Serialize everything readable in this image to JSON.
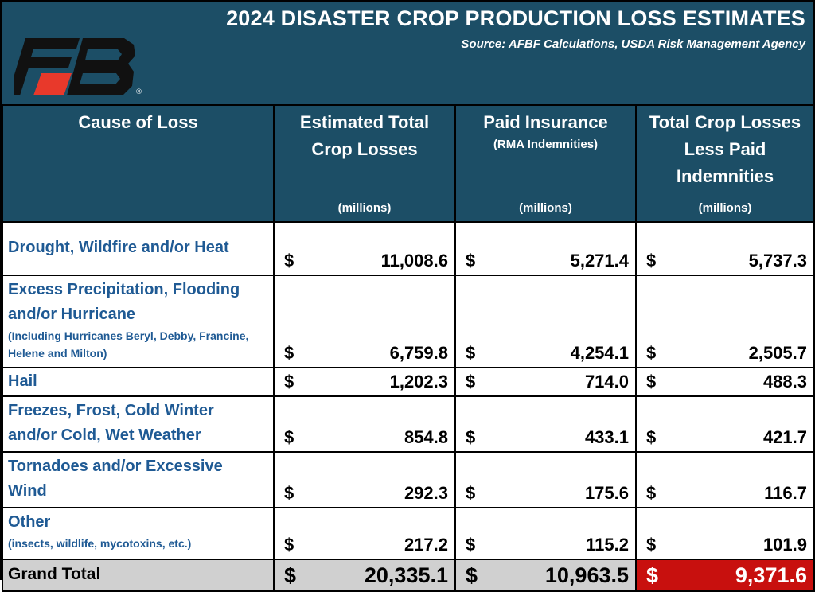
{
  "header": {
    "title": "2024 DISASTER CROP PRODUCTION LOSS ESTIMATES",
    "source": "Source: AFBF Calculations, USDA Risk Management Agency",
    "logo": {
      "icon": "farm-bureau-logo-icon",
      "registered_mark": "®",
      "colors": {
        "dark": "#111111",
        "accent": "#e8392b"
      }
    }
  },
  "columns": {
    "cause": {
      "label": "Cause of Loss"
    },
    "estimated": {
      "label_line1": "Estimated Total",
      "label_line2": "Crop Losses",
      "unit": "(millions)"
    },
    "paid": {
      "label_line1": "Paid Insurance",
      "sublabel": "(RMA Indemnities)",
      "unit": "(millions)"
    },
    "net": {
      "label_line1": "Total Crop Losses",
      "label_line2": "Less Paid",
      "label_line3": "Indemnities",
      "unit": "(millions)"
    }
  },
  "currency_symbol": "$",
  "rows": [
    {
      "cause_line1": "Drought, Wildfire and/or Heat",
      "estimated": "11,008.6",
      "paid": "5,271.4",
      "net": "5,737.3"
    },
    {
      "cause_line1": "Excess Precipitation, Flooding",
      "cause_line2": "and/or Hurricane",
      "note_line1": "(Including Hurricanes Beryl, Debby, Francine,",
      "note_line2": "Helene and Milton)",
      "estimated": "6,759.8",
      "paid": "4,254.1",
      "net": "2,505.7"
    },
    {
      "cause_line1": "Hail",
      "estimated": "1,202.3",
      "paid": "714.0",
      "net": "488.3"
    },
    {
      "cause_line1": "Freezes, Frost, Cold Winter",
      "cause_line2": "and/or Cold, Wet Weather",
      "estimated": "854.8",
      "paid": "433.1",
      "net": "421.7"
    },
    {
      "cause_line1": "Tornadoes and/or Excessive",
      "cause_line2": "Wind",
      "estimated": "292.3",
      "paid": "175.6",
      "net": "116.7"
    },
    {
      "cause_line1": "Other",
      "note_line1": "(insects, wildlife, mycotoxins, etc.)",
      "estimated": "217.2",
      "paid": "115.2",
      "net": "101.9"
    }
  ],
  "total": {
    "label": "Grand Total",
    "estimated": "20,335.1",
    "paid": "10,963.5",
    "net": "9,371.6"
  },
  "colors": {
    "header_bg": "#1c4e66",
    "cause_text": "#1f5a94",
    "total_bg": "#d0d0d0",
    "highlight_bg": "#c8100e"
  }
}
